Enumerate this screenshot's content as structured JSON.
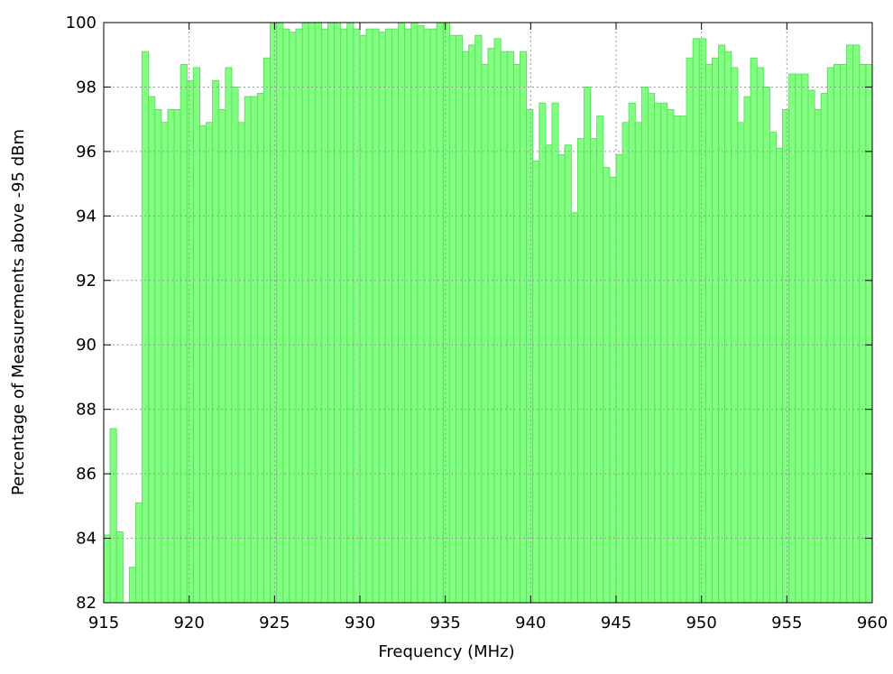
{
  "chart_data": {
    "type": "histogram",
    "xlabel": "Frequency (MHz)",
    "ylabel": "Percentage of Measurements above -95 dBm",
    "color": "#80ff80",
    "edgecolor": "#5fe05f",
    "grid": true,
    "xlim": [
      915,
      960
    ],
    "xticks": [
      915,
      920,
      925,
      930,
      935,
      940,
      945,
      950,
      955,
      960
    ],
    "ylim": [
      82,
      100
    ],
    "yticks": [
      82,
      84,
      86,
      88,
      90,
      92,
      94,
      96,
      98,
      100
    ],
    "bins": [
      915,
      915.375,
      915.75,
      916.125,
      916.5,
      916.875,
      917.25,
      917.625,
      918,
      918.375,
      918.75,
      919.125,
      919.5,
      919.875,
      920.25,
      920.625,
      921,
      921.375,
      921.75,
      922.125,
      922.5,
      922.875,
      923.25,
      923.625,
      924,
      924.375,
      924.75,
      925.125,
      925.5,
      925.875,
      926.25,
      926.625,
      927,
      927.375,
      927.75,
      928.125,
      928.5,
      928.875,
      929.25,
      929.625,
      930,
      930.375,
      930.75,
      931.125,
      931.5,
      931.875,
      932.25,
      932.625,
      933,
      933.375,
      933.75,
      934.125,
      934.5,
      934.875,
      935.25,
      935.625,
      936,
      936.375,
      936.75,
      937.125,
      937.5,
      937.875,
      938.25,
      938.625,
      939,
      939.375,
      939.75,
      940.125,
      940.5,
      940.875,
      941.25,
      941.625,
      942,
      942.375,
      942.75,
      943.125,
      943.5,
      943.875,
      944.25,
      944.625,
      945,
      945.375,
      945.75,
      946.125,
      946.5,
      946.875,
      947.25,
      947.625,
      948,
      948.375,
      948.75,
      949.125,
      949.5,
      949.875,
      950.25,
      950.625,
      951,
      951.375,
      951.75,
      952.125,
      952.5,
      952.875,
      953.25,
      953.625,
      954,
      954.375,
      954.75,
      955.125,
      955.5,
      955.875,
      956.25,
      956.625,
      957,
      957.375,
      957.75,
      958.125,
      958.5,
      958.875,
      959.25,
      959.625,
      960
    ],
    "values": [
      84.1,
      87.4,
      84.2,
      81.9,
      83.1,
      85.1,
      99.1,
      97.7,
      97.3,
      96.9,
      97.3,
      97.3,
      98.7,
      98.2,
      98.6,
      96.8,
      96.9,
      98.2,
      97.3,
      98.6,
      98.0,
      96.9,
      97.7,
      97.7,
      97.8,
      98.9,
      100,
      100,
      99.8,
      99.7,
      99.8,
      100,
      100,
      100,
      99.8,
      100,
      100,
      99.8,
      100,
      99.8,
      99.6,
      99.8,
      99.8,
      99.7,
      99.8,
      99.8,
      100,
      99.8,
      100,
      99.9,
      99.8,
      99.8,
      100,
      100,
      99.6,
      99.6,
      99.1,
      99.3,
      99.6,
      98.7,
      99.2,
      99.5,
      99.1,
      99.1,
      98.7,
      99.1,
      97.3,
      95.7,
      97.5,
      96.2,
      97.5,
      95.9,
      96.2,
      94.1,
      96.4,
      98.0,
      96.4,
      97.1,
      95.5,
      95.2,
      95.9,
      96.9,
      97.5,
      96.9,
      98.0,
      97.8,
      97.5,
      97.5,
      97.3,
      97.1,
      97.1,
      98.9,
      99.5,
      99.5,
      98.7,
      98.9,
      99.3,
      99.1,
      98.6,
      96.9,
      97.7,
      98.9,
      98.6,
      98.0,
      96.6,
      96.1,
      97.3,
      98.4,
      98.4,
      98.4,
      97.9,
      97.3,
      97.8,
      98.6,
      98.7,
      98.7,
      99.3,
      99.3,
      98.7,
      98.7
    ]
  }
}
